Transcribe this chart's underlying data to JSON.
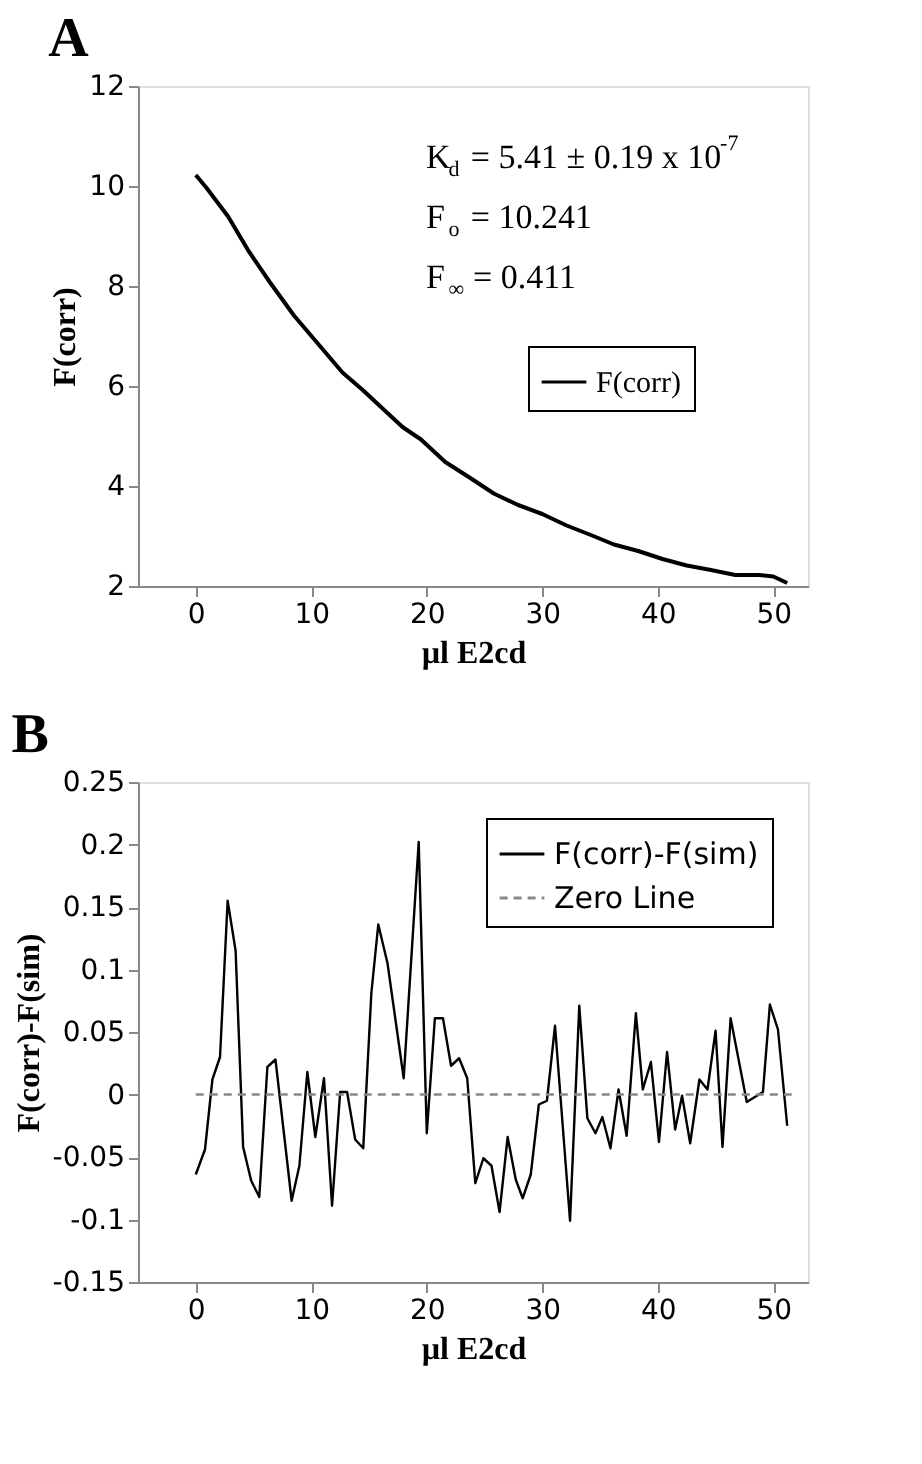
{
  "chart_data": [
    {
      "type": "line",
      "title": "A",
      "xlabel": "µl E2cd",
      "ylabel": "F(corr)",
      "series": [
        {
          "name": "F(corr)",
          "color": "#000000",
          "x": [
            0,
            0.94,
            2.8,
            4.6,
            6.4,
            8.5,
            10.6,
            12.7,
            14.5,
            15.8,
            17.9,
            19.5,
            21.6,
            23.7,
            25.8,
            27.9,
            30.0,
            32.1,
            34.2,
            36.2,
            38.3,
            40.4,
            42.5,
            44.6,
            46.7,
            48.8,
            50.0,
            51.2
          ],
          "values": [
            10.22,
            9.96,
            9.39,
            8.69,
            8.08,
            7.41,
            6.84,
            6.27,
            5.91,
            5.63,
            5.18,
            4.93,
            4.48,
            4.17,
            3.85,
            3.62,
            3.44,
            3.21,
            3.02,
            2.83,
            2.7,
            2.54,
            2.41,
            2.32,
            2.22,
            2.22,
            2.19,
            2.06
          ]
        }
      ],
      "annotations": [
        "K$_{d}$ = 5.41 ± 0.19 x 10$^{-7}$",
        "F$_{o}$ = 10.241",
        "F$_{∞}$ = 0.411"
      ],
      "xlim": [
        -5,
        53
      ],
      "xticks": [
        0,
        10,
        20,
        30,
        40,
        50
      ],
      "ylim": [
        2,
        12
      ],
      "yticks": [
        2,
        4,
        6,
        8,
        10,
        12
      ],
      "grid": false,
      "legend": "right",
      "marker": "none",
      "line_style": "solid"
    },
    {
      "type": "line",
      "title": "B",
      "xlabel": "µl E2cd",
      "ylabel": "F(corr)-F(sim)",
      "series": [
        {
          "name": "F(corr)-F(sim)",
          "color": "#000000",
          "line_style": "solid",
          "x": [
            0,
            0.8,
            1.44,
            2.1,
            2.76,
            3.45,
            4.1,
            4.8,
            5.5,
            6.2,
            6.9,
            8.3,
            8.97,
            9.66,
            10.35,
            11.1,
            11.8,
            12.5,
            13.1,
            13.8,
            14.5,
            15.2,
            15.8,
            16.6,
            18.0,
            19.3,
            20.0,
            20.7,
            21.4,
            22.1,
            22.8,
            23.5,
            24.2,
            24.9,
            25.6,
            26.3,
            27.0,
            27.7,
            28.3,
            29.0,
            29.7,
            30.4,
            31.1,
            32.4,
            33.2,
            33.9,
            34.6,
            35.2,
            35.9,
            36.6,
            37.3,
            38.1,
            38.7,
            39.4,
            40.1,
            40.8,
            41.5,
            42.1,
            42.8,
            43.6,
            44.3,
            45.0,
            45.6,
            46.3,
            47.7,
            49.1,
            49.7,
            50.4,
            51.2
          ],
          "values": [
            -0.064,
            -0.044,
            0.012,
            0.03,
            0.155,
            0.115,
            -0.042,
            -0.069,
            -0.082,
            0.022,
            0.028,
            -0.085,
            -0.057,
            0.018,
            -0.034,
            0.013,
            -0.089,
            0.002,
            0.002,
            -0.036,
            -0.043,
            0.081,
            0.136,
            0.105,
            0.013,
            0.202,
            -0.031,
            0.061,
            0.061,
            0.023,
            0.029,
            0.013,
            -0.071,
            -0.051,
            -0.057,
            -0.094,
            -0.034,
            -0.068,
            -0.083,
            -0.064,
            -0.008,
            -0.005,
            0.055,
            -0.101,
            0.071,
            -0.019,
            -0.031,
            -0.018,
            -0.043,
            0.004,
            -0.033,
            0.065,
            0.004,
            0.026,
            -0.038,
            0.034,
            -0.028,
            -0.001,
            -0.039,
            0.012,
            0.004,
            0.051,
            -0.042,
            0.061,
            -0.006,
            0.002,
            0.072,
            0.052,
            -0.025
          ]
        },
        {
          "name": "Zero Line",
          "color": "#888888",
          "line_style": "dashed",
          "x": [
            0,
            52
          ],
          "values": [
            0,
            0
          ]
        }
      ],
      "xlim": [
        -5,
        53
      ],
      "xticks": [
        0,
        10,
        20,
        30,
        40,
        50
      ],
      "ylim": [
        -0.15,
        0.25
      ],
      "yticks": [
        {
          "value": -0.15,
          "label": "-0.15"
        },
        {
          "value": -0.1,
          "label": "-0.1"
        },
        {
          "value": -0.05,
          "label": "-0.05"
        },
        {
          "value": 0,
          "label": "0"
        },
        {
          "value": 0.05,
          "label": "0.05"
        },
        {
          "value": 0.1,
          "label": "0.1"
        },
        {
          "value": 0.15,
          "label": "0.15"
        },
        {
          "value": 0.2,
          "label": "0.2"
        },
        {
          "value": 0.25,
          "label": "0.25"
        }
      ],
      "grid": false,
      "legend": "top right",
      "marker": "none"
    }
  ]
}
